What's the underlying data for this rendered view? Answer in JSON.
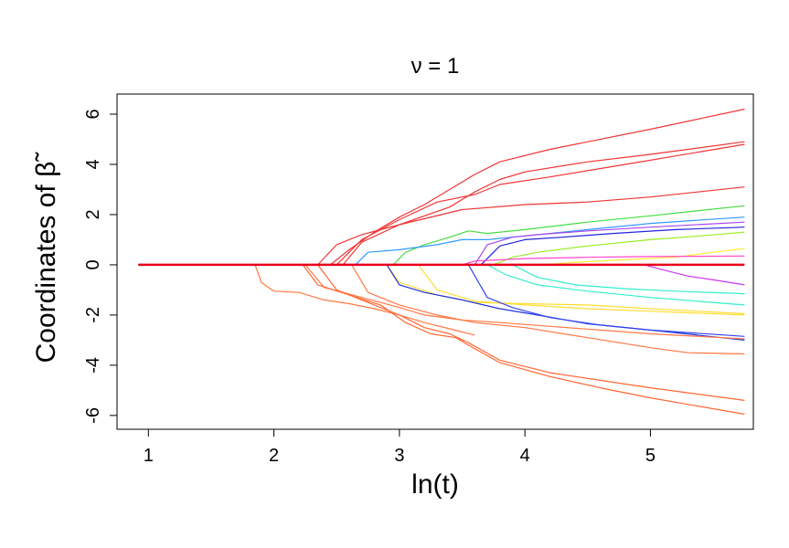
{
  "chart_data": {
    "type": "line",
    "title": "ν = 1",
    "xlabel": "ln(t)",
    "ylabel": "Coordinates of β̃",
    "xlim": [
      0.75,
      5.82
    ],
    "ylim": [
      -6.55,
      6.8
    ],
    "xticks": [
      1,
      2,
      3,
      4,
      5
    ],
    "yticks": [
      -6,
      -4,
      -2,
      0,
      2,
      4,
      6
    ],
    "grid": false,
    "legend": "none",
    "zero_line": {
      "color": "#e8001c",
      "x": [
        0.92,
        5.75
      ],
      "y": 0
    },
    "series": [
      {
        "color": "#ee3535",
        "x": [
          0.92,
          2.45,
          2.6,
          2.8,
          3.0,
          3.2,
          3.4,
          3.6,
          3.8,
          4.2,
          5.0,
          5.75
        ],
        "y": [
          0,
          0,
          0.6,
          1.3,
          1.9,
          2.4,
          3.0,
          3.6,
          4.1,
          4.6,
          5.4,
          6.2
        ]
      },
      {
        "color": "#ee3535",
        "x": [
          0.92,
          2.55,
          2.7,
          3.0,
          3.4,
          3.6,
          3.8,
          4.0,
          4.5,
          5.0,
          5.75
        ],
        "y": [
          0,
          0,
          0.9,
          1.6,
          2.3,
          2.9,
          3.4,
          3.7,
          4.1,
          4.4,
          4.9
        ]
      },
      {
        "color": "#ee3535",
        "x": [
          0.92,
          2.5,
          2.7,
          3.0,
          3.3,
          3.6,
          3.8,
          4.2,
          4.8,
          5.75
        ],
        "y": [
          0,
          0,
          1.0,
          1.8,
          2.5,
          2.8,
          3.2,
          3.5,
          4.0,
          4.8
        ]
      },
      {
        "color": "#ee3535",
        "x": [
          0.92,
          2.35,
          2.5,
          2.7,
          3.0,
          3.5,
          4.0,
          4.5,
          5.0,
          5.75
        ],
        "y": [
          0,
          0,
          0.8,
          1.2,
          1.6,
          2.2,
          2.4,
          2.5,
          2.7,
          3.1
        ]
      },
      {
        "color": "#44dd44",
        "x": [
          0.92,
          2.95,
          3.05,
          3.2,
          3.4,
          3.55,
          3.7,
          4.0,
          4.5,
          5.0,
          5.75
        ],
        "y": [
          0,
          0,
          0.5,
          0.8,
          1.1,
          1.35,
          1.25,
          1.4,
          1.7,
          1.95,
          2.35
        ]
      },
      {
        "color": "#3399ff",
        "x": [
          0.92,
          2.65,
          2.75,
          3.0,
          3.3,
          3.5,
          3.7,
          4.0,
          4.5,
          5.0,
          5.75
        ],
        "y": [
          0,
          0,
          0.5,
          0.6,
          0.8,
          1.0,
          1.0,
          1.15,
          1.4,
          1.65,
          1.9
        ]
      },
      {
        "color": "#aa44ee",
        "x": [
          0.92,
          3.6,
          3.7,
          3.9,
          4.1,
          4.5,
          5.0,
          5.75
        ],
        "y": [
          0,
          0,
          0.8,
          1.1,
          1.2,
          1.35,
          1.5,
          1.7
        ]
      },
      {
        "color": "#2222dd",
        "x": [
          0.92,
          3.65,
          3.8,
          4.0,
          4.3,
          4.7,
          5.2,
          5.75
        ],
        "y": [
          0,
          0,
          0.75,
          1.0,
          1.1,
          1.25,
          1.4,
          1.5
        ]
      },
      {
        "color": "#99ee22",
        "x": [
          0.92,
          3.75,
          3.9,
          4.1,
          4.5,
          5.0,
          5.4,
          5.75
        ],
        "y": [
          0,
          0,
          0.3,
          0.5,
          0.75,
          1.0,
          1.15,
          1.3
        ]
      },
      {
        "color": "#ffee33",
        "x": [
          0.92,
          4.15,
          4.4,
          4.8,
          5.2,
          5.5,
          5.75
        ],
        "y": [
          0,
          0,
          0.1,
          0.2,
          0.3,
          0.5,
          0.65
        ]
      },
      {
        "color": "#ff44cc",
        "x": [
          0.92,
          3.5,
          3.6,
          4.0,
          4.5,
          5.0,
          5.75
        ],
        "y": [
          0,
          0,
          0.15,
          0.25,
          0.3,
          0.33,
          0.35
        ]
      },
      {
        "color": "#cc33ee",
        "x": [
          0.92,
          4.95,
          5.1,
          5.3,
          5.5,
          5.75
        ],
        "y": [
          0,
          0,
          -0.2,
          -0.45,
          -0.6,
          -0.8
        ]
      },
      {
        "color": "#33eecc",
        "x": [
          0.92,
          3.9,
          4.1,
          4.4,
          4.8,
          5.2,
          5.75
        ],
        "y": [
          0,
          0,
          -0.5,
          -0.8,
          -0.95,
          -1.05,
          -1.15
        ]
      },
      {
        "color": "#33eecc",
        "x": [
          0.92,
          3.7,
          3.85,
          4.1,
          4.5,
          5.0,
          5.75
        ],
        "y": [
          0,
          0,
          -0.4,
          -0.8,
          -1.05,
          -1.3,
          -1.6
        ]
      },
      {
        "color": "#ffdd33",
        "x": [
          0.92,
          3.15,
          3.3,
          3.6,
          4.0,
          4.5,
          5.0,
          5.75
        ],
        "y": [
          0,
          0,
          -1.0,
          -1.45,
          -1.6,
          -1.75,
          -1.85,
          -2.0
        ]
      },
      {
        "color": "#ffdd33",
        "x": [
          0.92,
          2.9,
          3.0,
          3.3,
          3.6,
          4.0,
          4.5,
          5.0,
          5.75
        ],
        "y": [
          0,
          0,
          -0.7,
          -1.2,
          -1.5,
          -1.55,
          -1.6,
          -1.75,
          -1.95
        ]
      },
      {
        "color": "#2233dd",
        "x": [
          0.92,
          2.9,
          3.0,
          3.2,
          3.5,
          3.8,
          4.1,
          4.5,
          5.0,
          5.75
        ],
        "y": [
          0,
          0,
          -0.8,
          -1.1,
          -1.4,
          -1.75,
          -2.0,
          -2.35,
          -2.6,
          -3.0
        ]
      },
      {
        "color": "#3344ee",
        "x": [
          0.92,
          3.55,
          3.7,
          3.9,
          4.2,
          4.6,
          5.0,
          5.75
        ],
        "y": [
          0,
          0,
          -1.3,
          -1.7,
          -2.1,
          -2.4,
          -2.6,
          -2.85
        ]
      },
      {
        "color": "#ff7744",
        "x": [
          0.92,
          2.25,
          2.4,
          2.7,
          3.0,
          3.2,
          3.5,
          3.8,
          4.2,
          4.6,
          5.0,
          5.75
        ],
        "y": [
          0,
          0,
          -0.9,
          -1.3,
          -1.7,
          -2.0,
          -2.2,
          -2.3,
          -2.45,
          -2.6,
          -2.75,
          -2.95
        ]
      },
      {
        "color": "#ff7744",
        "x": [
          0.92,
          2.62,
          2.75,
          3.0,
          3.3,
          3.6,
          4.0,
          4.5,
          5.0,
          5.3,
          5.75
        ],
        "y": [
          0,
          0,
          -1.1,
          -1.6,
          -2.0,
          -2.3,
          -2.5,
          -2.9,
          -3.3,
          -3.5,
          -3.55
        ]
      },
      {
        "color": "#ff6633",
        "x": [
          0.92,
          2.35,
          2.5,
          2.8,
          3.0,
          3.2,
          3.4,
          3.55,
          3.8,
          4.2,
          4.6,
          5.0,
          5.75
        ],
        "y": [
          0,
          0,
          -1.0,
          -1.6,
          -2.0,
          -2.5,
          -2.75,
          -3.1,
          -3.8,
          -4.3,
          -4.6,
          -4.9,
          -5.4
        ]
      },
      {
        "color": "#ff6633",
        "x": [
          0.92,
          2.23,
          2.35,
          2.6,
          2.85,
          3.05,
          3.25,
          3.45,
          3.55,
          3.8,
          4.2,
          4.6,
          5.0,
          5.75
        ],
        "y": [
          0,
          0,
          -0.8,
          -1.2,
          -1.6,
          -2.3,
          -2.75,
          -2.9,
          -3.2,
          -3.9,
          -4.45,
          -4.9,
          -5.3,
          -5.95
        ]
      },
      {
        "color": "#ff7744",
        "x": [
          0.92,
          1.85,
          1.9,
          2.0,
          2.2,
          2.4,
          2.6,
          2.8,
          3.0,
          3.2,
          3.4,
          3.6
        ],
        "y": [
          0,
          0,
          -0.7,
          -1.05,
          -1.1,
          -1.4,
          -1.55,
          -1.75,
          -2.0,
          -2.3,
          -2.55,
          -2.8
        ]
      }
    ]
  }
}
